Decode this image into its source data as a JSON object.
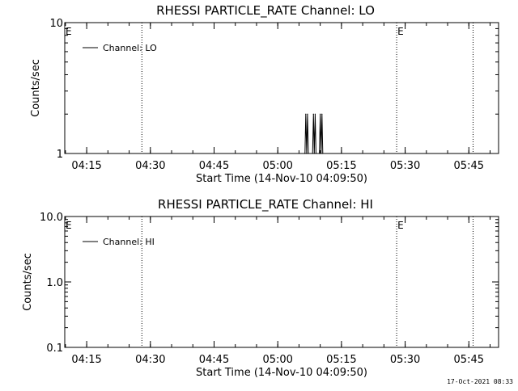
{
  "chart_data": [
    {
      "type": "line",
      "title": "RHESSI PARTICLE_RATE Channel: LO",
      "xlabel": "Start Time (14-Nov-10 04:09:50)",
      "ylabel": "Counts/sec",
      "yscale": "log",
      "xlim": [
        "04:09:50",
        "05:52:00"
      ],
      "ylim": [
        1,
        10
      ],
      "x_ticks": [
        "04:15",
        "04:30",
        "04:45",
        "05:00",
        "05:15",
        "05:30",
        "05:45"
      ],
      "y_ticks": [
        "1",
        "10"
      ],
      "legend": "top-left",
      "series": [
        {
          "name": "Channel: LO",
          "x": [
            "05:06:24",
            "05:06:36",
            "05:06:48",
            "05:07:00",
            "05:07:12",
            "05:08:12",
            "05:08:24",
            "05:08:36",
            "05:08:48",
            "05:09:00",
            "05:09:48",
            "05:10:00",
            "05:10:12",
            "05:10:24",
            "05:10:36"
          ],
          "y": [
            1,
            2,
            1,
            2,
            1,
            1,
            2,
            1,
            2,
            1,
            1,
            2,
            1,
            2,
            1
          ]
        }
      ],
      "vlines": [
        "04:28:00",
        "05:28:00",
        "05:46:00"
      ],
      "markers": [
        {
          "label": "E",
          "x": "04:09:50"
        },
        {
          "label": "E",
          "x": "05:28:00"
        }
      ]
    },
    {
      "type": "line",
      "title": "RHESSI PARTICLE_RATE Channel: HI",
      "xlabel": "Start Time (14-Nov-10 04:09:50)",
      "ylabel": "Counts/sec",
      "yscale": "log",
      "xlim": [
        "04:09:50",
        "05:52:00"
      ],
      "ylim": [
        0.1,
        10
      ],
      "x_ticks": [
        "04:15",
        "04:30",
        "04:45",
        "05:00",
        "05:15",
        "05:30",
        "05:45"
      ],
      "y_ticks": [
        "0.1",
        "1.0",
        "10.0"
      ],
      "legend": "top-left",
      "series": [
        {
          "name": "Channel: HI",
          "x": [],
          "y": []
        }
      ],
      "vlines": [
        "04:28:00",
        "05:28:00",
        "05:46:00"
      ],
      "markers": [
        {
          "label": "E",
          "x": "04:09:50"
        },
        {
          "label": "E",
          "x": "05:28:00"
        }
      ]
    }
  ],
  "footer": {
    "timestamp": "17-Oct-2021 08:33"
  }
}
